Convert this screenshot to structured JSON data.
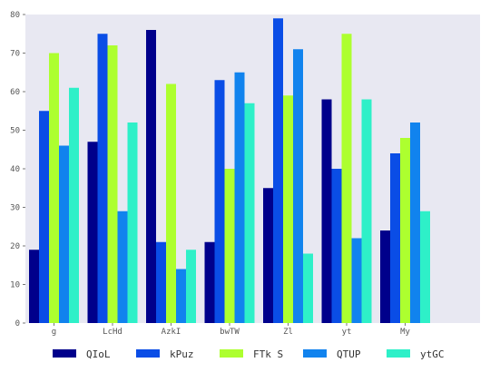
{
  "chart_data": {
    "type": "bar",
    "categories": [
      "g",
      "LcHd",
      "AzkI",
      "bwTW",
      "Zl",
      "yt",
      "My"
    ],
    "series": [
      {
        "name": "QIoL",
        "color": "#00008b",
        "values": [
          19,
          47,
          76,
          21,
          35,
          58,
          24
        ]
      },
      {
        "name": "kPuz",
        "color": "#0a4de6",
        "values": [
          55,
          75,
          21,
          63,
          79,
          40,
          44
        ]
      },
      {
        "name": "FTk S",
        "color": "#adff2f",
        "values": [
          70,
          72,
          62,
          40,
          59,
          75,
          48
        ]
      },
      {
        "name": "QTUP",
        "color": "#1183ee",
        "values": [
          46,
          29,
          14,
          65,
          71,
          22,
          52
        ]
      },
      {
        "name": "ytGC",
        "color": "#2ef0c8",
        "values": [
          61,
          52,
          19,
          57,
          18,
          58,
          29
        ]
      }
    ],
    "yticks": [
      0,
      10,
      20,
      30,
      40,
      50,
      60,
      70,
      80
    ],
    "ylim": [
      0,
      80
    ],
    "grid": false,
    "legend_position": "bottom",
    "background": "#e8e8f2",
    "title": "",
    "xlabel": "",
    "ylabel": ""
  }
}
